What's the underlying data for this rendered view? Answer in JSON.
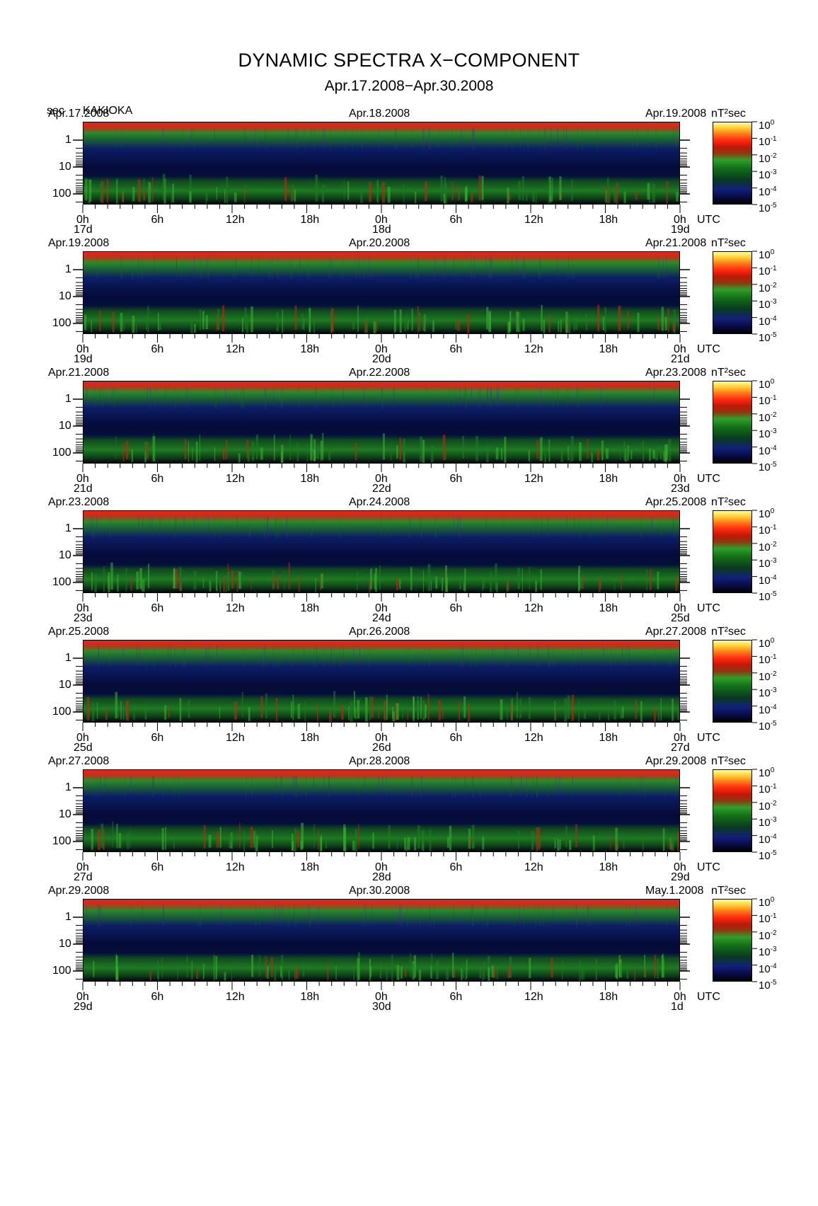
{
  "title": "DYNAMIC SPECTRA X−COMPONENT",
  "subtitle": "Apr.17.2008−Apr.30.2008",
  "station": {
    "unit": "sec",
    "name": "KAKIOKA"
  },
  "colorbar": {
    "unit": "nT²sec",
    "ticks": [
      {
        "base": "10",
        "exp": "0"
      },
      {
        "base": "10",
        "exp": "-1"
      },
      {
        "base": "10",
        "exp": "-2"
      },
      {
        "base": "10",
        "exp": "-3"
      },
      {
        "base": "10",
        "exp": "-4"
      },
      {
        "base": "10",
        "exp": "-5"
      }
    ],
    "colors": [
      "#000000",
      "#10207a",
      "#137018",
      "#c01808",
      "#ff7a1a",
      "#ffff99"
    ]
  },
  "y_axis": {
    "tick_labels": [
      "1",
      "10",
      "100"
    ]
  },
  "x_axis": {
    "tick_labels": [
      "0h",
      "6h",
      "12h",
      "18h",
      "0h",
      "6h",
      "12h",
      "18h",
      "0h"
    ],
    "unit": "UTC"
  },
  "panels": [
    {
      "date_left": "Apr.17.2008",
      "date_mid": "Apr.18.2008",
      "date_right": "Apr.19.2008",
      "day_labels": [
        "17d",
        "18d",
        "19d"
      ]
    },
    {
      "date_left": "Apr.19.2008",
      "date_mid": "Apr.20.2008",
      "date_right": "Apr.21.2008",
      "day_labels": [
        "19d",
        "20d",
        "21d"
      ]
    },
    {
      "date_left": "Apr.21.2008",
      "date_mid": "Apr.22.2008",
      "date_right": "Apr.23.2008",
      "day_labels": [
        "21d",
        "22d",
        "23d"
      ]
    },
    {
      "date_left": "Apr.23.2008",
      "date_mid": "Apr.24.2008",
      "date_right": "Apr.25.2008",
      "day_labels": [
        "23d",
        "24d",
        "25d"
      ]
    },
    {
      "date_left": "Apr.25.2008",
      "date_mid": "Apr.26.2008",
      "date_right": "Apr.27.2008",
      "day_labels": [
        "25d",
        "26d",
        "27d"
      ]
    },
    {
      "date_left": "Apr.27.2008",
      "date_mid": "Apr.28.2008",
      "date_right": "Apr.29.2008",
      "day_labels": [
        "27d",
        "28d",
        "29d"
      ]
    },
    {
      "date_left": "Apr.29.2008",
      "date_mid": "Apr.30.2008",
      "date_right": "May.1.2008",
      "day_labels": [
        "29d",
        "30d",
        "1d"
      ]
    }
  ],
  "chart_data": {
    "type": "heatmap",
    "title": "DYNAMIC SPECTRA X−COMPONENT",
    "subtitle": "Apr.17.2008−Apr.30.2008",
    "ylabel": "sec",
    "xlabel": "UTC",
    "y_scale": "log",
    "y_ticks": [
      1,
      10,
      100
    ],
    "x_ticks_hours": [
      0,
      6,
      12,
      18,
      24,
      30,
      36,
      42,
      48
    ],
    "color_scale": "log",
    "color_range_nT2sec": [
      1e-05,
      1
    ],
    "panels": [
      {
        "range": "Apr.17.2008−Apr.19.2008"
      },
      {
        "range": "Apr.19.2008−Apr.21.2008"
      },
      {
        "range": "Apr.21.2008−Apr.23.2008"
      },
      {
        "range": "Apr.23.2008−Apr.25.2008"
      },
      {
        "range": "Apr.25.2008−Apr.27.2008"
      },
      {
        "range": "Apr.27.2008−Apr.29.2008"
      },
      {
        "range": "Apr.29.2008−May.1.2008"
      }
    ]
  }
}
